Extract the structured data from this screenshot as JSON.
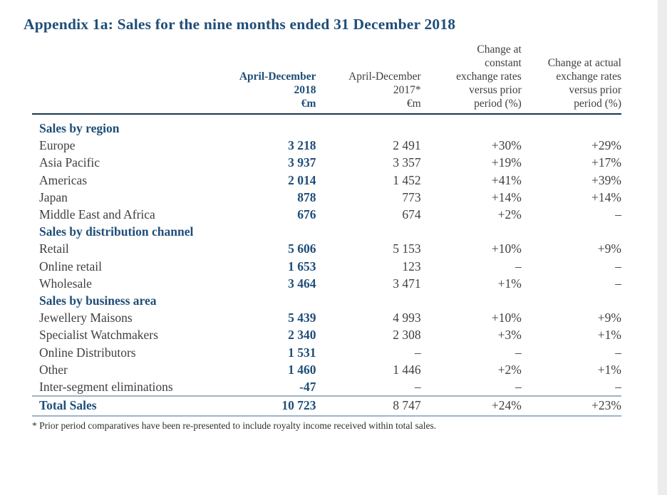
{
  "title": "Appendix 1a: Sales for the nine months ended 31 December 2018",
  "table": {
    "col_headers": {
      "h2018": "April-December\n2018\n€m",
      "h2017": "April-December\n2017*\n€m",
      "h_const": "Change at\nconstant\nexchange rates\nversus prior\nperiod (%)",
      "h_actual": "Change at actual\nexchange rates\nversus prior\nperiod (%)"
    },
    "sections": [
      {
        "header": "Sales by region",
        "rows": [
          {
            "label": "Europe",
            "v2018": "3 218",
            "v2017": "2 491",
            "chg_const": "+30%",
            "chg_actual": "+29%"
          },
          {
            "label": "Asia Pacific",
            "v2018": "3 937",
            "v2017": "3 357",
            "chg_const": "+19%",
            "chg_actual": "+17%"
          },
          {
            "label": "Americas",
            "v2018": "2 014",
            "v2017": "1 452",
            "chg_const": "+41%",
            "chg_actual": "+39%"
          },
          {
            "label": "Japan",
            "v2018": "878",
            "v2017": "773",
            "chg_const": "+14%",
            "chg_actual": "+14%"
          },
          {
            "label": "Middle East and Africa",
            "v2018": "676",
            "v2017": "674",
            "chg_const": "+2%",
            "chg_actual": "–"
          }
        ]
      },
      {
        "header": "Sales by distribution channel",
        "rows": [
          {
            "label": "Retail",
            "v2018": "5 606",
            "v2017": "5 153",
            "chg_const": "+10%",
            "chg_actual": "+9%"
          },
          {
            "label": "Online retail",
            "v2018": "1 653",
            "v2017": "123",
            "chg_const": "–",
            "chg_actual": "–"
          },
          {
            "label": "Wholesale",
            "v2018": "3 464",
            "v2017": "3 471",
            "chg_const": "+1%",
            "chg_actual": "–"
          }
        ]
      },
      {
        "header": "Sales by business area",
        "rows": [
          {
            "label": "Jewellery Maisons",
            "v2018": "5 439",
            "v2017": "4 993",
            "chg_const": "+10%",
            "chg_actual": "+9%"
          },
          {
            "label": "Specialist Watchmakers",
            "v2018": "2 340",
            "v2017": "2 308",
            "chg_const": "+3%",
            "chg_actual": "+1%"
          },
          {
            "label": "Online Distributors",
            "v2018": "1 531",
            "v2017": "–",
            "chg_const": "–",
            "chg_actual": "–"
          },
          {
            "label": "Other",
            "v2018": "1 460",
            "v2017": "1 446",
            "chg_const": "+2%",
            "chg_actual": "+1%"
          },
          {
            "label": "Inter-segment eliminations",
            "v2018": "-47",
            "v2017": "–",
            "chg_const": "–",
            "chg_actual": "–"
          }
        ]
      }
    ],
    "total": {
      "label": "Total Sales",
      "v2018": "10 723",
      "v2017": "8 747",
      "chg_const": "+24%",
      "chg_actual": "+23%"
    },
    "footnote": "* Prior period comparatives have been re-presented to include royalty income received within total sales."
  },
  "colors": {
    "accent_navy": "#1f4e79",
    "body_text": "#3f3f3f",
    "header_rule": "#17384f",
    "light_rule": "#9fb5c6"
  }
}
